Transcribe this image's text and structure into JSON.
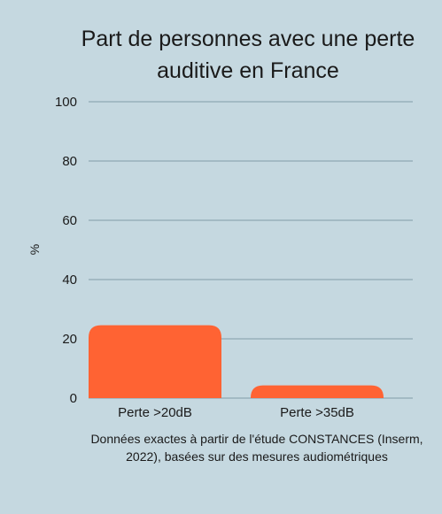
{
  "chart_data": {
    "type": "bar",
    "title": "Part de personnes avec une perte auditive en France",
    "categories": [
      "Perte >20dB",
      "Perte >35dB"
    ],
    "values": [
      24.6,
      4.3
    ],
    "xlabel": "",
    "ylabel": "%",
    "ylim": [
      0,
      100
    ],
    "yticks": [
      0,
      20,
      40,
      60,
      80,
      100
    ],
    "grid": true,
    "bar_color": "#ff6333",
    "grid_color": "#8fa7b3",
    "background": "#c5d8e0"
  },
  "footnote": "Données exactes à partir de l'étude CONSTANCES (Inserm, 2022), basées sur des mesures audiométriques"
}
